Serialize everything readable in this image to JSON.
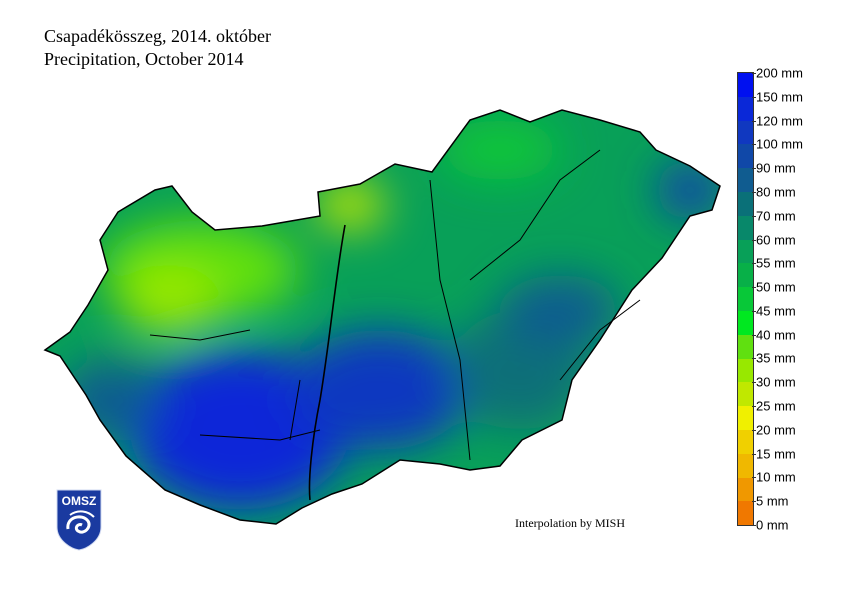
{
  "title": {
    "line1": "Csapadékösszeg, 2014. október",
    "line2": "Precipitation, October 2014"
  },
  "credit": "Interpolation by MISH",
  "logo": {
    "text": "OMSZ"
  },
  "legend": {
    "labels": [
      "200 mm",
      "150 mm",
      "120 mm",
      "100 mm",
      "90 mm",
      "80 mm",
      "70 mm",
      "60 mm",
      "55 mm",
      "50 mm",
      "45 mm",
      "40 mm",
      "35 mm",
      "30 mm",
      "25 mm",
      "20 mm",
      "15 mm",
      "10 mm",
      "5 mm",
      "0 mm"
    ],
    "colors": [
      "#0010f0",
      "#0a28d8",
      "#1038c0",
      "#1048a8",
      "#105c90",
      "#0a7078",
      "#08886a",
      "#08a058",
      "#08b048",
      "#08c838",
      "#00e820",
      "#60e010",
      "#98e800",
      "#c0e800",
      "#f0f000",
      "#f0d000",
      "#f0b800",
      "#f09800",
      "#f07800"
    ]
  }
}
